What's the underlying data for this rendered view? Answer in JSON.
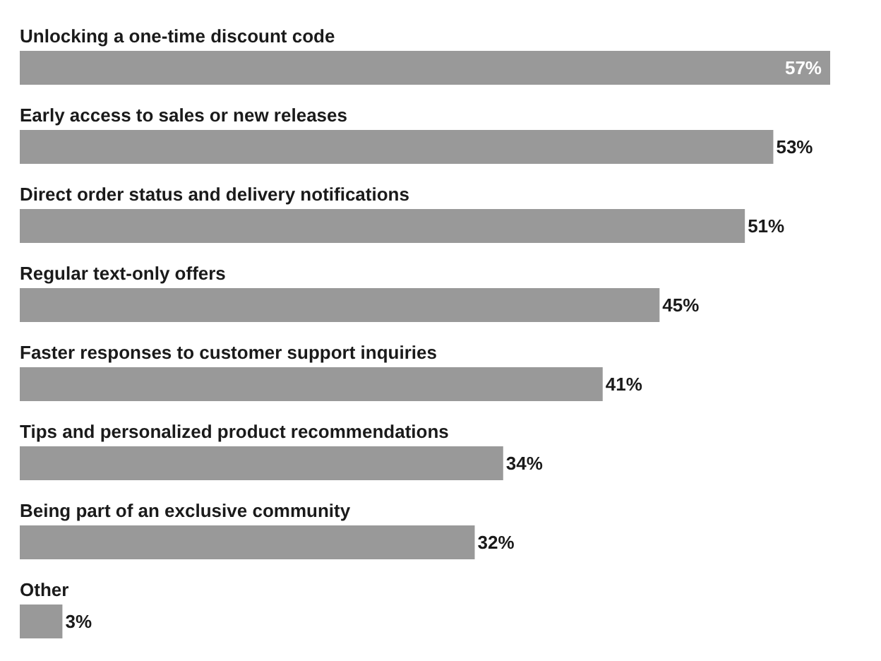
{
  "chart_data": {
    "type": "bar",
    "orientation": "horizontal",
    "categories": [
      "Unlocking a one-time discount code",
      "Early access to sales or new releases",
      "Direct order status and delivery notifications",
      "Regular text-only offers",
      "Faster responses to customer support inquiries",
      "Tips and personalized product recommendations",
      "Being part of an exclusive community",
      "Other"
    ],
    "values": [
      57,
      53,
      51,
      45,
      41,
      34,
      32,
      3
    ],
    "value_labels": [
      "57%",
      "53%",
      "51%",
      "45%",
      "41%",
      "34%",
      "32%",
      "3%"
    ],
    "color": "#999999"
  }
}
